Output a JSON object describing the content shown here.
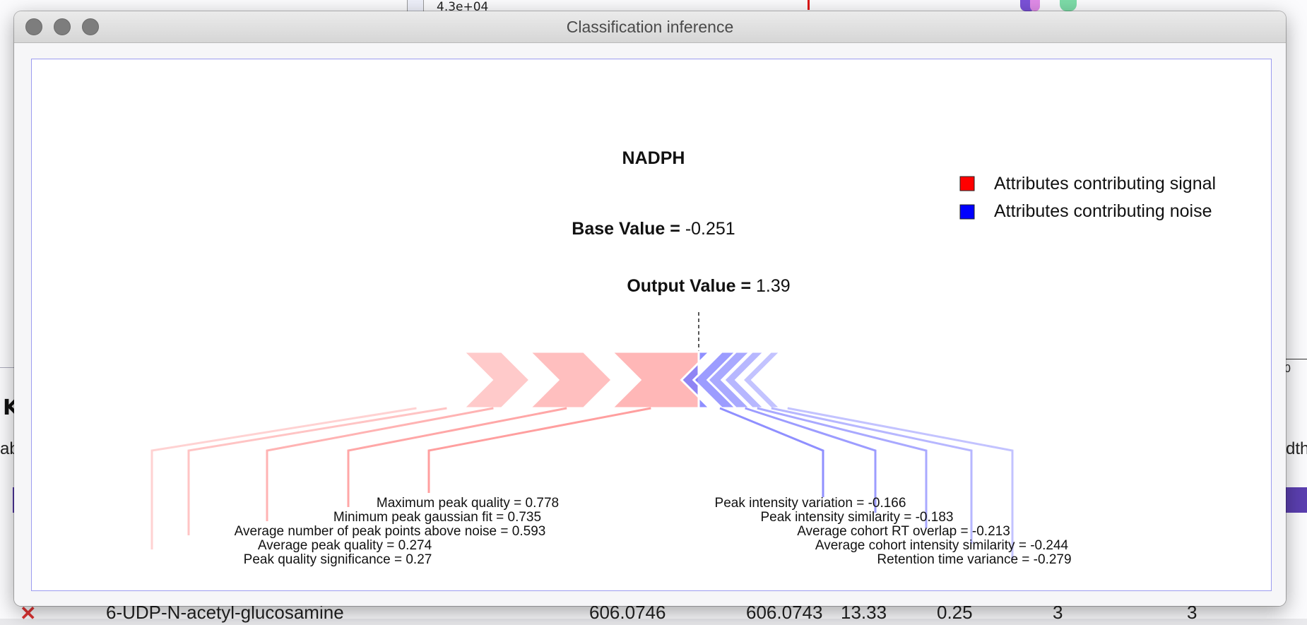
{
  "window": {
    "title": "Classification inference"
  },
  "background": {
    "axis_tick": "4.3e+04",
    "left_heading_fragment": "K",
    "left_text_fragment": "ab",
    "right_text_fragment": "dth",
    "right_axis_label": "0",
    "bottom_row": {
      "name": "6-UDP-N-acetyl-glucosamine",
      "col1": "606.0746",
      "col2": "606.0743",
      "col3": "13.33",
      "col4": "0.25",
      "col5": "3",
      "col6": "3"
    }
  },
  "colors": {
    "signal": "#ff0000",
    "noise": "#0000ff",
    "signal_bar": "#ff8a8a",
    "noise_bar": "#7b7bff"
  },
  "chart_data": {
    "type": "force-plot",
    "title": "NADPH",
    "base_value_label": "Base Value = ",
    "base_value": "-0.251",
    "output_value_label": "Output Value = ",
    "output_value": "1.39",
    "legend": [
      {
        "label": "Attributes contributing signal",
        "color": "#ff0000"
      },
      {
        "label": "Attributes contributing noise",
        "color": "#0000ff"
      }
    ],
    "legend_position": "top-right",
    "signal_features": [
      {
        "label": "Maximum peak quality = 0.778",
        "name": "Maximum peak quality",
        "value": 0.778
      },
      {
        "label": "Minimum peak gaussian fit = 0.735",
        "name": "Minimum peak gaussian fit",
        "value": 0.735
      },
      {
        "label": "Average number of peak points above noise = 0.593",
        "name": "Average number of peak points above noise",
        "value": 0.593
      },
      {
        "label": "Average peak quality = 0.274",
        "name": "Average peak quality",
        "value": 0.274
      },
      {
        "label": "Peak quality significance = 0.27",
        "name": "Peak quality significance",
        "value": 0.27
      }
    ],
    "noise_features": [
      {
        "label": "Peak intensity variation = -0.166",
        "name": "Peak intensity variation",
        "value": -0.166
      },
      {
        "label": "Peak intensity similarity = -0.183",
        "name": "Peak intensity similarity",
        "value": -0.183
      },
      {
        "label": "Average cohort RT overlap = -0.213",
        "name": "Average cohort RT overlap",
        "value": -0.213
      },
      {
        "label": "Average cohort intensity similarity = -0.244",
        "name": "Average cohort intensity similarity",
        "value": -0.244
      },
      {
        "label": "Retention time variance = -0.279",
        "name": "Retention time variance",
        "value": -0.279
      }
    ]
  }
}
